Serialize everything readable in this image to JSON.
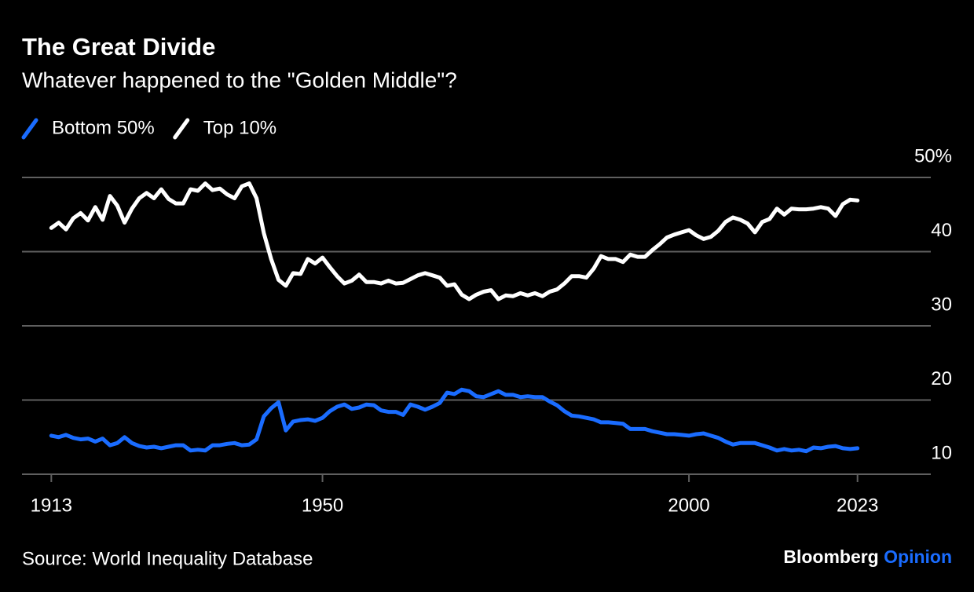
{
  "chart_data": {
    "type": "line",
    "title": "The Great Divide",
    "subtitle": "Whatever happened to the \"Golden Middle\"?",
    "source": "Source: World Inequality Database",
    "branding": {
      "name": "Bloomberg",
      "section": "Opinion"
    },
    "x": [
      1913,
      1914,
      1915,
      1916,
      1917,
      1918,
      1919,
      1920,
      1921,
      1922,
      1923,
      1924,
      1925,
      1926,
      1927,
      1928,
      1929,
      1930,
      1931,
      1932,
      1933,
      1934,
      1935,
      1936,
      1937,
      1938,
      1939,
      1940,
      1941,
      1942,
      1943,
      1944,
      1945,
      1946,
      1947,
      1948,
      1949,
      1950,
      1951,
      1952,
      1953,
      1954,
      1955,
      1956,
      1957,
      1958,
      1959,
      1960,
      1961,
      1962,
      1963,
      1964,
      1965,
      1966,
      1967,
      1968,
      1969,
      1970,
      1971,
      1972,
      1973,
      1974,
      1975,
      1976,
      1977,
      1978,
      1979,
      1980,
      1981,
      1982,
      1983,
      1984,
      1985,
      1986,
      1987,
      1988,
      1989,
      1990,
      1991,
      1992,
      1993,
      1994,
      1995,
      1996,
      1997,
      1998,
      1999,
      2000,
      2001,
      2002,
      2003,
      2004,
      2005,
      2006,
      2007,
      2008,
      2009,
      2010,
      2011,
      2012,
      2013,
      2014,
      2015,
      2016,
      2017,
      2018,
      2019,
      2020,
      2021,
      2022,
      2023
    ],
    "series": [
      {
        "name": "Bottom 50%",
        "color": "#1a6cff",
        "values": [
          15.2,
          15.0,
          15.3,
          14.9,
          14.7,
          14.8,
          14.4,
          14.8,
          13.9,
          14.2,
          15.0,
          14.2,
          13.8,
          13.6,
          13.7,
          13.5,
          13.7,
          13.9,
          13.9,
          13.2,
          13.3,
          13.2,
          13.9,
          13.9,
          14.1,
          14.2,
          13.9,
          14.0,
          14.7,
          17.8,
          18.9,
          19.7,
          15.9,
          17.1,
          17.3,
          17.4,
          17.2,
          17.6,
          18.5,
          19.1,
          19.4,
          18.8,
          19.0,
          19.4,
          19.3,
          18.6,
          18.4,
          18.4,
          18.0,
          19.4,
          19.1,
          18.7,
          19.1,
          19.6,
          21.0,
          20.8,
          21.4,
          21.2,
          20.5,
          20.4,
          20.8,
          21.2,
          20.7,
          20.7,
          20.4,
          20.5,
          20.4,
          20.4,
          19.8,
          19.3,
          18.5,
          17.9,
          17.8,
          17.6,
          17.4,
          17.0,
          17.0,
          16.9,
          16.8,
          16.1,
          16.1,
          16.1,
          15.8,
          15.6,
          15.4,
          15.4,
          15.3,
          15.2,
          15.4,
          15.5,
          15.2,
          14.9,
          14.4,
          14.0,
          14.2,
          14.2,
          14.2,
          13.9,
          13.6,
          13.2,
          13.4,
          13.2,
          13.3,
          13.1,
          13.6,
          13.5,
          13.7,
          13.8,
          13.5,
          13.4,
          13.5
        ]
      },
      {
        "name": "Top 10%",
        "color": "#ffffff",
        "values": [
          43.2,
          43.9,
          43.0,
          44.5,
          45.2,
          44.2,
          46.0,
          44.3,
          47.5,
          46.2,
          43.9,
          45.8,
          47.2,
          47.9,
          47.2,
          48.4,
          47.1,
          46.5,
          46.5,
          48.4,
          48.2,
          49.2,
          48.3,
          48.5,
          47.7,
          47.2,
          48.8,
          49.2,
          47.2,
          42.5,
          39.0,
          36.2,
          35.4,
          37.1,
          37.0,
          39.0,
          38.4,
          39.2,
          37.9,
          36.7,
          35.7,
          36.1,
          36.9,
          35.9,
          35.9,
          35.7,
          36.1,
          35.7,
          35.8,
          36.3,
          36.8,
          37.1,
          36.8,
          36.5,
          35.4,
          35.6,
          34.2,
          33.6,
          34.2,
          34.6,
          34.8,
          33.6,
          34.1,
          34.0,
          34.4,
          34.1,
          34.4,
          34.0,
          34.6,
          34.9,
          35.7,
          36.7,
          36.7,
          36.5,
          37.7,
          39.4,
          39.0,
          39.0,
          38.6,
          39.6,
          39.3,
          39.3,
          40.2,
          41.0,
          41.9,
          42.3,
          42.6,
          42.9,
          42.2,
          41.7,
          42.0,
          42.8,
          44.0,
          44.6,
          44.3,
          43.8,
          42.6,
          44.0,
          44.4,
          45.8,
          45.0,
          45.8,
          45.7,
          45.7,
          45.8,
          46.0,
          45.8,
          44.8,
          46.4,
          47.0,
          46.9
        ]
      }
    ],
    "xlim": [
      1909,
      2033
    ],
    "xticks": [
      1913,
      1950,
      2000,
      2023
    ],
    "ylim": [
      10,
      50
    ],
    "yticks": [
      10,
      20,
      30,
      40,
      {
        "value": 50,
        "label": "50%"
      }
    ],
    "grid": true
  }
}
